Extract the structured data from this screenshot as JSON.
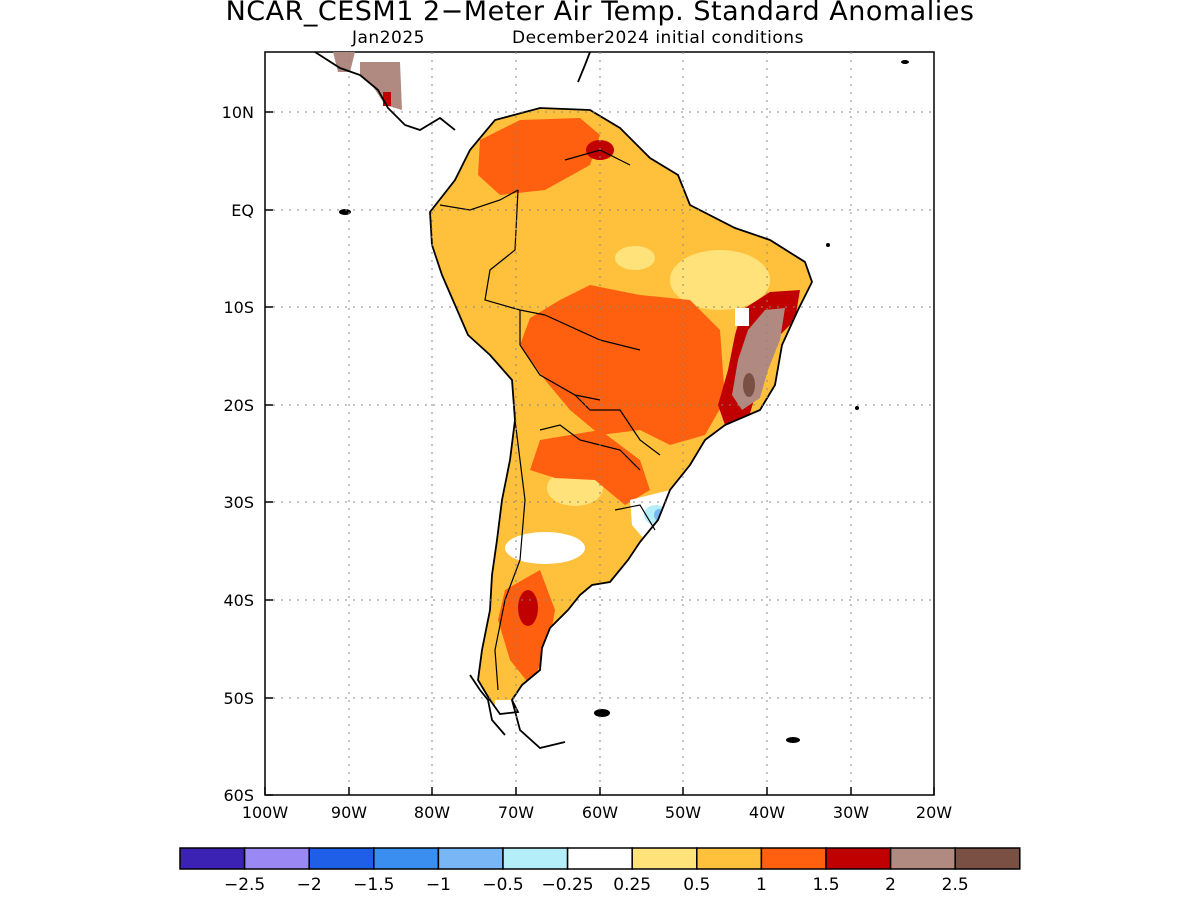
{
  "header": {
    "title": "NCAR_CESM1 2−Meter Air Temp. Standard Anomalies",
    "target_month": "Jan2025",
    "init_conditions": "December2024 initial conditions"
  },
  "map": {
    "region": "South America",
    "lon_range": [
      -100,
      -20
    ],
    "lat_range": [
      -60,
      15
    ],
    "lon_ticks": [
      "100W",
      "90W",
      "80W",
      "70W",
      "60W",
      "50W",
      "40W",
      "30W",
      "20W"
    ],
    "lat_ticks": [
      "10N",
      "EQ",
      "10S",
      "20S",
      "30S",
      "40S",
      "50S",
      "60S"
    ],
    "gridlines": "dotted"
  },
  "legend": {
    "colors": [
      "#3b22b5",
      "#9a88f5",
      "#1f5fe8",
      "#3a8ef0",
      "#78b6f5",
      "#b4eef9",
      "#ffffff",
      "#ffe27a",
      "#ffc13c",
      "#ff6010",
      "#c00000",
      "#b08a80",
      "#7a5044"
    ],
    "labels": [
      "−2.5",
      "−2",
      "−1.5",
      "−1",
      "−0.5",
      "−0.25",
      "0.25",
      "0.5",
      "1",
      "1.5",
      "2",
      "2.5"
    ]
  },
  "anomaly_regions": [
    {
      "area": "Amazon basin / central Brazil",
      "category": "0.5 to 1"
    },
    {
      "area": "Mato Grosso / Paraguay",
      "category": "1 to 1.5"
    },
    {
      "area": "Eastern Brazil (Bahia)",
      "category": "2 to 2.5+"
    },
    {
      "area": "Southern Brazil / Uruguay",
      "category": "-1 to 0.25"
    },
    {
      "area": "Patagonia (Argentina)",
      "category": "1.5 to 2"
    }
  ]
}
